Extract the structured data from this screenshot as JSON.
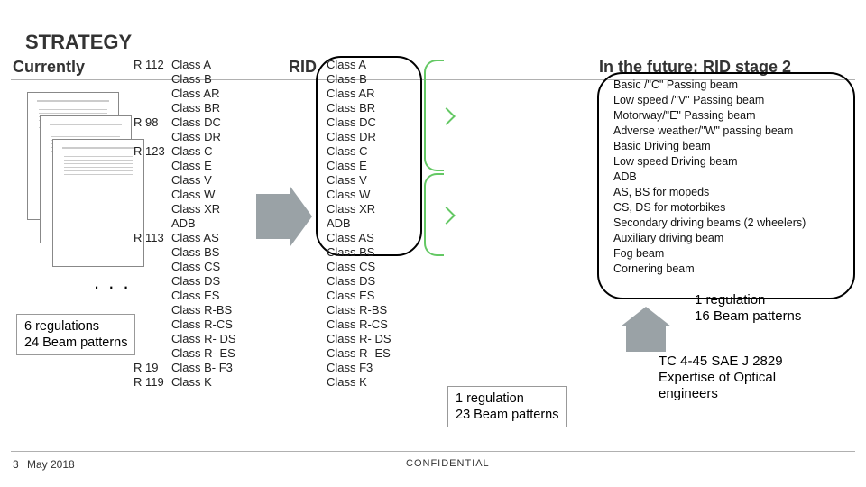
{
  "heading": "STRATEGY",
  "labels": {
    "currently": "Currently",
    "rid": "RID",
    "future": "In the future: RID stage 2"
  },
  "left": [
    {
      "reg": "R 112",
      "classes": [
        "Class A",
        "Class B",
        "Class AR",
        "Class BR"
      ]
    },
    {
      "reg": "R 98",
      "classes": [
        "Class DC",
        "Class DR"
      ]
    },
    {
      "reg": "R 123",
      "classes": [
        "Class C",
        "Class E",
        "Class V",
        "Class W",
        "Class XR",
        "ADB"
      ]
    },
    {
      "reg": "R 113",
      "classes": [
        "Class AS",
        "Class BS",
        "Class CS",
        "Class DS",
        "Class ES",
        "Class R-BS",
        "Class R-CS",
        "Class R- DS",
        "Class R- ES"
      ]
    },
    {
      "reg": "R 19",
      "classes": [
        "Class B- F3"
      ]
    },
    {
      "reg": "R 119",
      "classes": [
        "Class K"
      ]
    }
  ],
  "dots": ". . .",
  "mid": [
    "Class A",
    "Class B",
    "Class AR",
    "Class BR",
    "Class DC",
    "Class DR",
    "Class C",
    "Class E",
    "Class V",
    "Class W",
    "Class XR",
    "ADB",
    "Class AS",
    "Class BS",
    "Class CS",
    "Class DS",
    "Class ES",
    "Class R-BS",
    "Class R-CS",
    "Class R- DS",
    "Class R- ES",
    "Class F3",
    "Class K"
  ],
  "right": [
    "Basic /\"C\" Passing beam",
    "Low speed /\"V\" Passing beam",
    "Motorway/\"E\"  Passing beam",
    "Adverse weather/\"W\"  passing beam",
    "Basic Driving beam",
    "Low speed Driving beam",
    "ADB",
    "AS, BS for mopeds",
    "CS, DS for motorbikes",
    "Secondary driving beams  (2 wheelers)",
    "Auxiliary driving beam",
    "Fog beam",
    "Cornering beam"
  ],
  "badges": {
    "b1a": "6 regulations",
    "b1b": "24 Beam patterns",
    "b2a": "1 regulation",
    "b2b": "23 Beam patterns",
    "b3a": "1 regulation",
    "b3b": "16 Beam patterns",
    "b4a": "TC 4-45   SAE J 2829",
    "b4b": "Expertise of Optical",
    "b4c": "engineers"
  },
  "footer": {
    "page": "3",
    "date": "May  2018",
    "conf": "CONFIDENTIAL"
  },
  "colors": {
    "arrow": "#9aa2a6",
    "brace": "#64c864",
    "text": "#222222",
    "border": "#000000"
  }
}
